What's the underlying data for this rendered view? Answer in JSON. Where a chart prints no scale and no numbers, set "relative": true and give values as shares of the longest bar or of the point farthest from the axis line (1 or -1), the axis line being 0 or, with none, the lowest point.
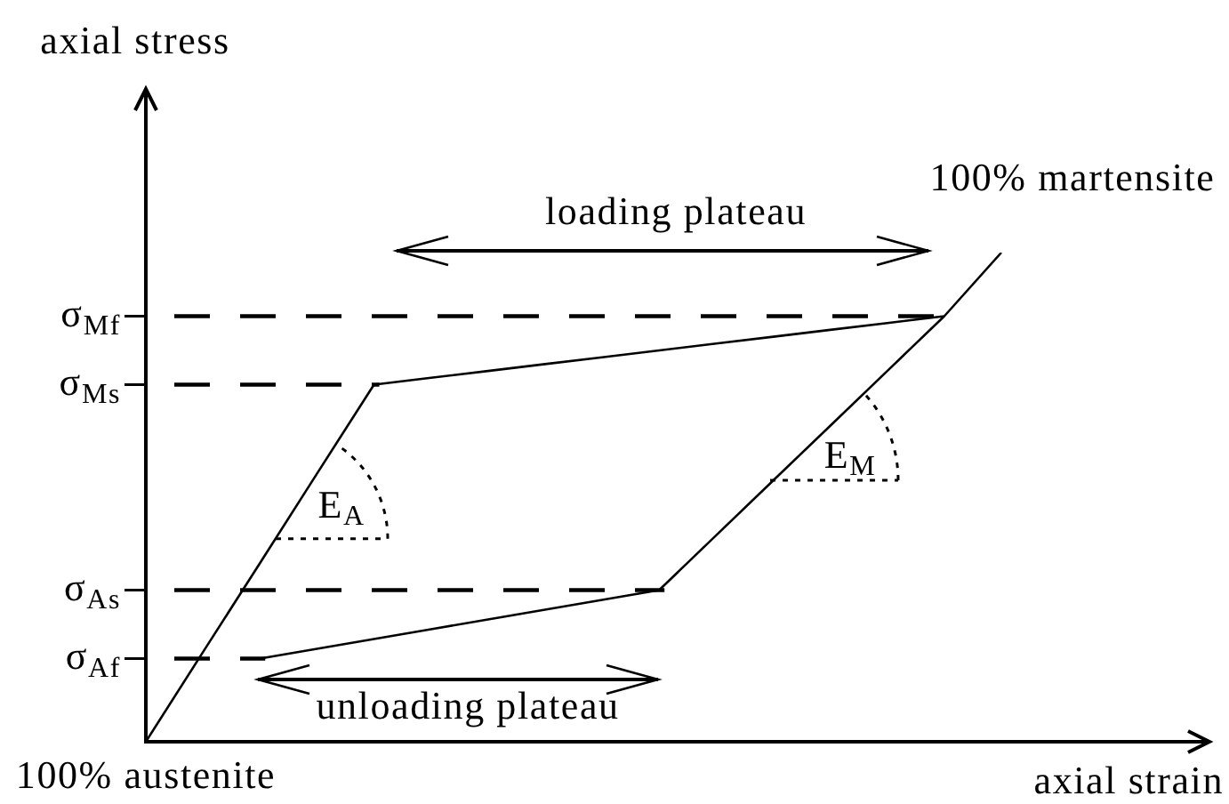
{
  "chart_data": {
    "type": "line",
    "relative": true,
    "xlabel": "axial strain",
    "ylabel": "axial stress",
    "marker": "none",
    "line_style": "solid",
    "categories": [
      null,
      null,
      null,
      null,
      null,
      null,
      null,
      null,
      null,
      null,
      null,
      null,
      null,
      null,
      null,
      null
    ],
    "series": [
      {
        "color": "#000000",
        "values": [
          0,
          0.183,
          0.365,
          0.548,
          0.73,
          0.744,
          0.758,
          0.772,
          0.786,
          0.8,
          0.814,
          0.828,
          0.842,
          0.856,
          0.87,
          1
        ]
      },
      {
        "color": "#000000",
        "values": [
          null,
          null,
          0.17,
          0.19,
          0.21,
          0.23,
          0.25,
          0.27,
          0.29,
          0.31,
          0.422,
          0.534,
          0.646,
          0.758,
          0.87,
          null
        ]
      }
    ],
    "ref_lines": [
      {
        "axis": "y",
        "value": 0.87,
        "label": "σ$_{Mf}$",
        "line_style": "dashed",
        "color": "#000000"
      },
      {
        "axis": "y",
        "value": 0.73,
        "label": "σ$_{Ms}$",
        "line_style": "dashed",
        "color": "#000000"
      },
      {
        "axis": "y",
        "value": 0.31,
        "label": "σ$_{As}$",
        "line_style": "dashed",
        "color": "#000000"
      },
      {
        "axis": "y",
        "value": 0.17,
        "label": "σ$_{Af}$",
        "line_style": "dashed",
        "color": "#000000"
      }
    ],
    "annotations": [
      "loading plateau",
      "unloading plateau",
      "100% martensite",
      "100% austenite",
      "E$_{A}$",
      "E$_{M}$"
    ]
  }
}
